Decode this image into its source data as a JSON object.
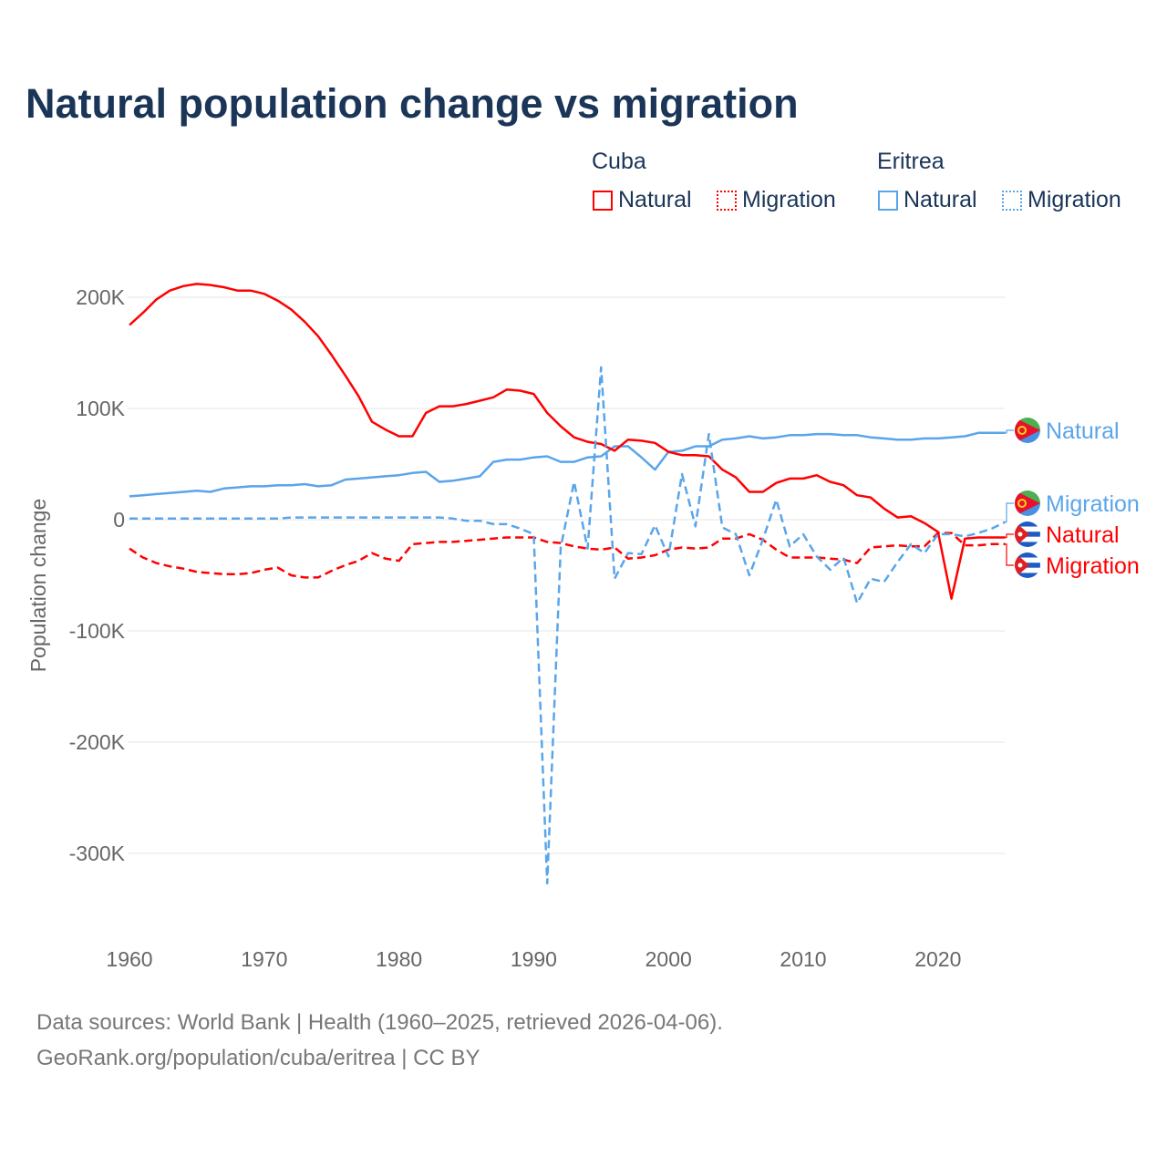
{
  "title": "Natural population change vs migration",
  "legend": {
    "groups": [
      {
        "name": "Cuba",
        "color": "#ff0000",
        "items": [
          "Natural",
          "Migration"
        ]
      },
      {
        "name": "Eritrea",
        "color": "#5aa5ea",
        "items": [
          "Natural",
          "Migration"
        ]
      }
    ]
  },
  "end_labels": {
    "eritrea_natural": "Natural",
    "eritrea_migration": "Migration",
    "cuba_natural": "Natural",
    "cuba_migration": "Migration"
  },
  "footer": {
    "line1": "Data sources: World Bank | Health (1960–2025, retrieved 2026-04-06).",
    "line2": "GeoRank.org/population/cuba/eritrea | CC BY"
  },
  "chart_data": {
    "type": "line",
    "title": "Natural population change vs migration",
    "xlabel": "",
    "ylabel": "Population change",
    "xlim": [
      1960,
      2025
    ],
    "ylim": [
      -350000,
      230000
    ],
    "x_ticks": [
      "1960",
      "1970",
      "1980",
      "1990",
      "2000",
      "2010",
      "2020"
    ],
    "y_ticks": [
      {
        "v": 200000,
        "label": "200K"
      },
      {
        "v": 100000,
        "label": "100K"
      },
      {
        "v": 0,
        "label": "0"
      },
      {
        "v": -100000,
        "label": "-100K"
      },
      {
        "v": -200000,
        "label": "-200K"
      },
      {
        "v": -300000,
        "label": "-300K"
      }
    ],
    "grid": true,
    "legend_position": "top-right",
    "x_start": 1960,
    "units": "thousands",
    "series": [
      {
        "name": "Cuba Natural",
        "country": "Cuba",
        "kind": "Natural",
        "color": "#ff0000",
        "dash": false,
        "values": [
          175,
          186,
          198,
          206,
          210,
          212,
          211,
          209,
          206,
          206,
          203,
          197,
          189,
          178,
          165,
          148,
          130,
          111,
          88,
          81,
          75,
          75,
          96,
          102,
          102,
          104,
          107,
          110,
          117,
          116,
          113,
          96,
          84,
          74,
          70,
          68,
          62,
          72,
          71,
          69,
          61,
          58,
          58,
          57,
          45,
          38,
          25,
          25,
          33,
          37,
          37,
          40,
          34,
          31,
          22,
          20,
          10,
          2,
          3,
          -3,
          -11,
          -71,
          -17,
          -16,
          -16,
          -16
        ]
      },
      {
        "name": "Cuba Migration",
        "country": "Cuba",
        "kind": "Migration",
        "color": "#ff0000",
        "dash": true,
        "values": [
          -26,
          -34,
          -39,
          -42,
          -44,
          -47,
          -48,
          -49,
          -49,
          -48,
          -45,
          -43,
          -50,
          -52,
          -52,
          -46,
          -41,
          -37,
          -30,
          -35,
          -37,
          -22,
          -21,
          -20,
          -20,
          -19,
          -18,
          -17,
          -16,
          -16,
          -16,
          -20,
          -21,
          -24,
          -26,
          -27,
          -25,
          -35,
          -34,
          -32,
          -27,
          -25,
          -26,
          -25,
          -17,
          -17,
          -13,
          -18,
          -27,
          -34,
          -34,
          -34,
          -35,
          -36,
          -39,
          -25,
          -24,
          -23,
          -24,
          -24,
          -12,
          -12,
          -23,
          -23,
          -22,
          -22
        ]
      },
      {
        "name": "Eritrea Natural",
        "country": "Eritrea",
        "kind": "Natural",
        "color": "#5aa5ea",
        "dash": false,
        "values": [
          21,
          22,
          23,
          24,
          25,
          26,
          25,
          28,
          29,
          30,
          30,
          31,
          31,
          32,
          30,
          31,
          36,
          37,
          38,
          39,
          40,
          42,
          43,
          34,
          35,
          37,
          39,
          52,
          54,
          54,
          56,
          57,
          52,
          52,
          56,
          57,
          66,
          66,
          56,
          45,
          61,
          62,
          66,
          66,
          72,
          73,
          75,
          73,
          74,
          76,
          76,
          77,
          77,
          76,
          76,
          74,
          73,
          72,
          72,
          73,
          73,
          74,
          75,
          78,
          78,
          78
        ]
      },
      {
        "name": "Eritrea Migration",
        "country": "Eritrea",
        "kind": "Migration",
        "color": "#5aa5ea",
        "dash": true,
        "values": [
          1,
          1,
          1,
          1,
          1,
          1,
          1,
          1,
          1,
          1,
          1,
          1,
          2,
          2,
          2,
          2,
          2,
          2,
          2,
          2,
          2,
          2,
          2,
          2,
          1,
          -1,
          -1,
          -4,
          -4,
          -8,
          -13,
          -327,
          -25,
          34,
          -26,
          137,
          -53,
          -30,
          -31,
          -5,
          -33,
          41,
          -6,
          77,
          -7,
          -13,
          -50,
          -18,
          18,
          -24,
          -13,
          -33,
          -45,
          -34,
          -75,
          -53,
          -56,
          -38,
          -22,
          -30,
          -13,
          -13,
          -15,
          -12,
          -8,
          -2
        ]
      }
    ]
  }
}
